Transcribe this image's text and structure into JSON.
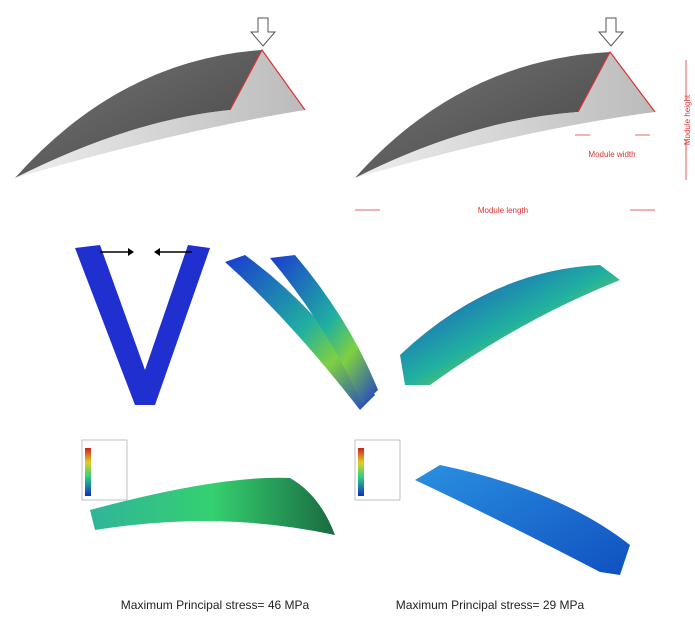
{
  "annotations": {
    "module_width": "Module width",
    "module_height": "Module height",
    "module_length": "Module length"
  },
  "captions": [
    "Maximum Principal stress= 46 MPa",
    "Maximum Principal stress= 29 MPa"
  ]
}
